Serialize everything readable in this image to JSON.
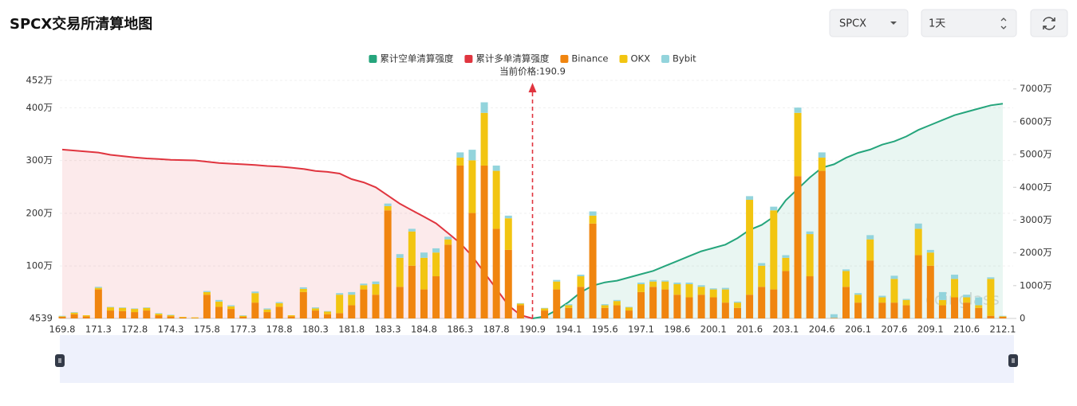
{
  "header": {
    "title": "SPCX交易所清算地图",
    "symbol": "SPCX",
    "interval": "1天"
  },
  "chart_data": {
    "type": "bar",
    "stacked": true,
    "categories": [
      "169.8",
      null,
      null,
      "171.3",
      null,
      null,
      "172.8",
      null,
      null,
      "174.3",
      null,
      null,
      "175.8",
      null,
      null,
      "177.3",
      null,
      null,
      "178.8",
      null,
      null,
      "180.3",
      null,
      null,
      "181.8",
      null,
      null,
      "183.3",
      null,
      null,
      "184.8",
      null,
      null,
      "186.3",
      null,
      null,
      "187.8",
      null,
      null,
      "190.9",
      null,
      null,
      "194.1",
      null,
      null,
      "195.6",
      null,
      null,
      "197.1",
      null,
      null,
      "198.6",
      null,
      null,
      "200.1",
      null,
      null,
      "201.6",
      null,
      null,
      "203.1",
      null,
      null,
      "204.6",
      null,
      null,
      "206.1",
      null,
      null,
      "207.6",
      null,
      null,
      "209.1",
      null,
      null,
      "210.6",
      null,
      null,
      "212.1"
    ],
    "series": [
      {
        "name": "累计空单清算强度",
        "type": "line",
        "axis": "y2",
        "color": "#25a57c",
        "area_color": "rgba(37,165,124,0.10)",
        "values": [
          null,
          null,
          null,
          null,
          null,
          null,
          null,
          null,
          null,
          null,
          null,
          null,
          null,
          null,
          null,
          null,
          null,
          null,
          null,
          null,
          null,
          null,
          null,
          null,
          null,
          null,
          null,
          null,
          null,
          null,
          null,
          null,
          null,
          null,
          null,
          null,
          null,
          null,
          null,
          0,
          600000,
          2500000,
          5000000,
          8000000,
          10000000,
          11000000,
          11500000,
          12500000,
          13500000,
          14500000,
          16000000,
          17500000,
          19000000,
          20500000,
          21500000,
          22500000,
          24500000,
          27000000,
          28500000,
          31000000,
          36000000,
          39500000,
          43000000,
          46000000,
          47000000,
          49000000,
          50500000,
          51500000,
          53000000,
          54000000,
          55500000,
          57500000,
          59000000,
          60500000,
          62000000,
          63000000,
          64000000,
          65000000,
          65500000
        ]
      },
      {
        "name": "累计多单清算强度",
        "type": "line",
        "axis": "y2",
        "color": "#e0353f",
        "area_color": "rgba(224,53,63,0.10)",
        "values": [
          51500000,
          51200000,
          50900000,
          50600000,
          49900000,
          49500000,
          49100000,
          48800000,
          48600000,
          48400000,
          48300000,
          48200000,
          47800000,
          47400000,
          47200000,
          47000000,
          46800000,
          46500000,
          46300000,
          46000000,
          45600000,
          45000000,
          44700000,
          44200000,
          42500000,
          41500000,
          40000000,
          37500000,
          35000000,
          33000000,
          31000000,
          29000000,
          26000000,
          23000000,
          19000000,
          14000000,
          9000000,
          4000000,
          1000000,
          0,
          null,
          null,
          null,
          null,
          null,
          null,
          null,
          null,
          null,
          null,
          null,
          null,
          null,
          null,
          null,
          null,
          null,
          null,
          null,
          null,
          null,
          null,
          null,
          null,
          null,
          null,
          null,
          null,
          null,
          null,
          null,
          null,
          null,
          null,
          null,
          null,
          null,
          null,
          null
        ]
      },
      {
        "name": "Binance",
        "type": "bar",
        "axis": "y",
        "color": "#f0850f",
        "values": [
          30000,
          80000,
          40000,
          550000,
          150000,
          140000,
          120000,
          150000,
          60000,
          40000,
          20000,
          10000,
          450000,
          220000,
          180000,
          30000,
          300000,
          120000,
          220000,
          40000,
          500000,
          150000,
          80000,
          100000,
          250000,
          550000,
          450000,
          2050000,
          600000,
          1000000,
          550000,
          800000,
          1400000,
          2900000,
          2000000,
          2900000,
          1700000,
          1300000,
          250000,
          0,
          150000,
          550000,
          200000,
          600000,
          1800000,
          200000,
          250000,
          150000,
          500000,
          600000,
          550000,
          450000,
          400000,
          450000,
          400000,
          300000,
          200000,
          450000,
          600000,
          550000,
          900000,
          2700000,
          800000,
          2800000,
          10000,
          600000,
          300000,
          1100000,
          300000,
          300000,
          250000,
          1200000,
          1000000,
          250000,
          400000,
          300000,
          200000,
          50000,
          30000
        ]
      },
      {
        "name": "OKX",
        "type": "bar",
        "axis": "y",
        "color": "#f2c511",
        "values": [
          10000,
          30000,
          20000,
          30000,
          60000,
          60000,
          60000,
          50000,
          30000,
          20000,
          10000,
          10000,
          50000,
          100000,
          50000,
          20000,
          180000,
          50000,
          70000,
          20000,
          60000,
          40000,
          50000,
          350000,
          200000,
          80000,
          200000,
          80000,
          550000,
          650000,
          600000,
          450000,
          100000,
          150000,
          1000000,
          1000000,
          1100000,
          600000,
          30000,
          0,
          40000,
          150000,
          50000,
          200000,
          150000,
          50000,
          80000,
          60000,
          150000,
          100000,
          150000,
          200000,
          250000,
          150000,
          150000,
          250000,
          100000,
          1800000,
          400000,
          1500000,
          250000,
          1200000,
          800000,
          250000,
          0,
          300000,
          150000,
          400000,
          100000,
          450000,
          100000,
          500000,
          250000,
          100000,
          350000,
          100000,
          50000,
          700000,
          10000
        ]
      },
      {
        "name": "Bybit",
        "type": "bar",
        "axis": "y",
        "color": "#93d4dc",
        "values": [
          10000,
          10000,
          0,
          20000,
          10000,
          10000,
          10000,
          10000,
          10000,
          10000,
          0,
          0,
          20000,
          30000,
          20000,
          10000,
          30000,
          20000,
          20000,
          0,
          30000,
          20000,
          10000,
          30000,
          50000,
          30000,
          50000,
          50000,
          70000,
          50000,
          100000,
          80000,
          50000,
          100000,
          200000,
          200000,
          100000,
          50000,
          10000,
          0,
          10000,
          30000,
          20000,
          30000,
          80000,
          20000,
          20000,
          10000,
          30000,
          30000,
          20000,
          30000,
          30000,
          30000,
          20000,
          30000,
          20000,
          70000,
          50000,
          70000,
          50000,
          100000,
          50000,
          100000,
          70000,
          30000,
          30000,
          80000,
          30000,
          60000,
          20000,
          100000,
          50000,
          150000,
          80000,
          50000,
          150000,
          30000,
          10000
        ]
      }
    ],
    "ylim": [
      4539,
      4520000
    ],
    "yticks": [
      4539,
      {
        "value": 1000000,
        "label": "100万"
      },
      {
        "value": 2000000,
        "label": "200万"
      },
      {
        "value": 3000000,
        "label": "300万"
      },
      {
        "value": 4000000,
        "label": "400万"
      },
      {
        "value": 4520000,
        "label": "452万"
      }
    ],
    "y2lim": [
      0,
      72600000
    ],
    "y2ticks": [
      0,
      {
        "value": 10000000,
        "label": "1000万"
      },
      {
        "value": 20000000,
        "label": "2000万"
      },
      {
        "value": 30000000,
        "label": "3000万"
      },
      {
        "value": 40000000,
        "label": "4000万"
      },
      {
        "value": 50000000,
        "label": "5000万"
      },
      {
        "value": 60000000,
        "label": "6000万"
      },
      {
        "value": 70000000,
        "label": "7000万"
      }
    ],
    "grid": true,
    "legend": "top",
    "annotation": {
      "text": "当前价格:190.9",
      "category": "190.9",
      "color": "#e0353f"
    },
    "watermark": "coinglass"
  }
}
